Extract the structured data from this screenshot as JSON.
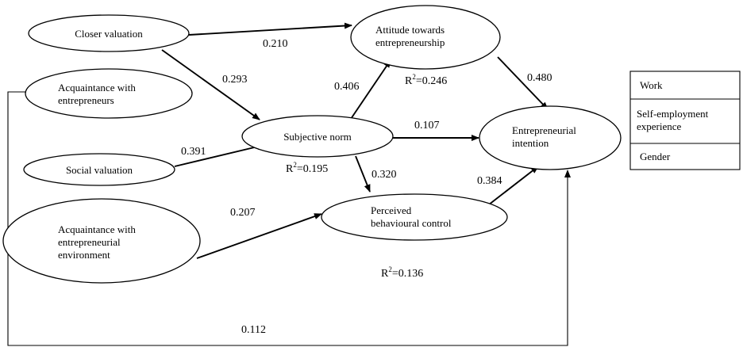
{
  "nodes": {
    "closer_valuation": {
      "lines": [
        "Closer valuation"
      ]
    },
    "acquaintance_entrepreneurs": {
      "lines": [
        "Acquaintance with",
        "entrepreneurs"
      ]
    },
    "social_valuation": {
      "lines": [
        "Social valuation"
      ]
    },
    "acquaintance_environment": {
      "lines": [
        "Acquaintance with",
        "entrepreneurial",
        "environment"
      ]
    },
    "subjective_norm": {
      "lines": [
        "Subjective norm"
      ]
    },
    "attitude": {
      "lines": [
        "Attitude towards",
        "entrepreneurship"
      ]
    },
    "perceived_control": {
      "lines": [
        "Perceived",
        "behavioural control"
      ]
    },
    "intention": {
      "lines": [
        "Entrepreneurial",
        "intention"
      ]
    }
  },
  "coefficients": {
    "closer_to_attitude": "0.210",
    "closer_to_norm": "0.293",
    "norm_to_attitude": "0.406",
    "attitude_to_intention": "0.480",
    "social_to_norm": "0.391",
    "norm_to_intention": "0.107",
    "norm_to_control": "0.320",
    "control_to_intention": "0.384",
    "environment_to_control": "0.207",
    "acquaintance_to_intention": "0.112"
  },
  "r_squared": {
    "attitude": {
      "prefix": "R",
      "sup": "2",
      "value": "=0.246"
    },
    "subjective_norm": {
      "prefix": "R",
      "sup": "2",
      "value": "=0.195"
    },
    "perceived_control": {
      "prefix": "R",
      "sup": "2",
      "value": "=0.136"
    }
  },
  "controls": [
    {
      "lines": [
        "Work"
      ]
    },
    {
      "lines": [
        "Self-employment",
        "experience"
      ]
    },
    {
      "lines": [
        "Gender"
      ]
    }
  ]
}
